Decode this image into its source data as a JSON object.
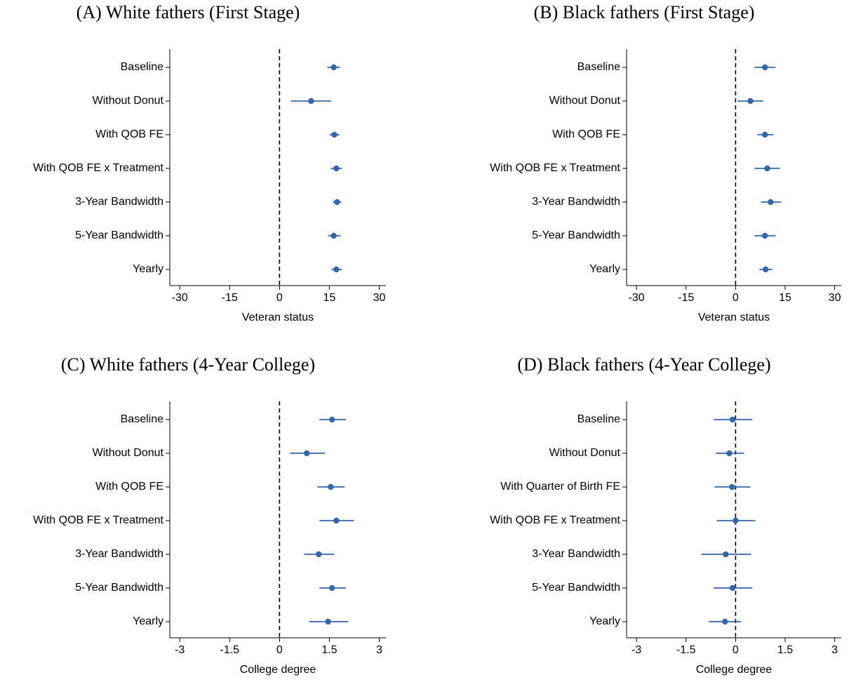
{
  "chart_data": [
    {
      "type": "coefplot",
      "title": "(A) White fathers (First Stage)",
      "xlabel": "Veteran status",
      "categories": [
        "Baseline",
        "Without Donut",
        "With QOB FE",
        "With QOB FE x Treatment",
        "3-Year Bandwidth",
        "5-Year Bandwidth",
        "Yearly"
      ],
      "values": [
        16.3,
        9.5,
        16.5,
        17.1,
        17.3,
        16.3,
        17.1
      ],
      "ci_low": [
        14.4,
        3.4,
        15.0,
        15.4,
        16.1,
        14.6,
        15.6
      ],
      "ci_high": [
        18.2,
        15.6,
        18.0,
        18.8,
        18.6,
        18.4,
        18.8
      ],
      "color": "#3467a8",
      "refline": 0,
      "xlim": [
        -33,
        32
      ],
      "xticks": [
        -30,
        -15,
        0,
        15,
        30
      ]
    },
    {
      "type": "coefplot",
      "title": "(B) Black fathers (First Stage)",
      "xlabel": "Veteran status",
      "categories": [
        "Baseline",
        "Without Donut",
        "With QOB FE",
        "With QOB FE x Treatment",
        "3-Year Bandwidth",
        "5-Year Bandwidth",
        "Yearly"
      ],
      "values": [
        8.9,
        4.5,
        8.9,
        9.6,
        10.6,
        8.9,
        9.1
      ],
      "ci_low": [
        5.7,
        0.6,
        6.6,
        5.7,
        7.7,
        5.7,
        7.2
      ],
      "ci_high": [
        12.1,
        8.3,
        11.5,
        13.4,
        13.8,
        12.1,
        11.1
      ],
      "color": "#3467a8",
      "refline": 0,
      "xlim": [
        -33,
        32
      ],
      "xticks": [
        -30,
        -15,
        0,
        15,
        30
      ]
    },
    {
      "type": "coefplot",
      "title": "(C) White fathers (4-Year College)",
      "xlabel": "College degree",
      "categories": [
        "Baseline",
        "Without Donut",
        "With QOB FE",
        "With QOB FE x Treatment",
        "3-Year Bandwidth",
        "5-Year Bandwidth",
        "Yearly"
      ],
      "values": [
        1.58,
        0.82,
        1.54,
        1.71,
        1.18,
        1.58,
        1.46
      ],
      "ci_low": [
        1.2,
        0.32,
        1.14,
        1.2,
        0.74,
        1.2,
        0.89
      ],
      "ci_high": [
        2.0,
        1.37,
        1.96,
        2.24,
        1.65,
        2.0,
        2.07
      ],
      "color": "#3467a8",
      "refline": 0,
      "xlim": [
        -3.3,
        3.2
      ],
      "xticks": [
        -3,
        -1.5,
        0,
        1.5,
        3
      ]
    },
    {
      "type": "coefplot",
      "title": "(D) Black fathers (4-Year College)",
      "xlabel": "College degree",
      "categories": [
        "Baseline",
        "Without Donut",
        "With Quarter of Birth FE",
        "With QOB FE x Treatment",
        "3-Year Bandwidth",
        "5-Year Bandwidth",
        "Yearly"
      ],
      "values": [
        -0.09,
        -0.19,
        -0.11,
        0.0,
        -0.3,
        -0.09,
        -0.32
      ],
      "ci_low": [
        -0.66,
        -0.6,
        -0.64,
        -0.57,
        -1.04,
        -0.66,
        -0.81
      ],
      "ci_high": [
        0.51,
        0.26,
        0.45,
        0.6,
        0.47,
        0.51,
        0.17
      ],
      "color": "#3467a8",
      "refline": 0,
      "xlim": [
        -3.3,
        3.2
      ],
      "xticks": [
        -3,
        -1.5,
        0,
        1.5,
        3
      ]
    }
  ]
}
